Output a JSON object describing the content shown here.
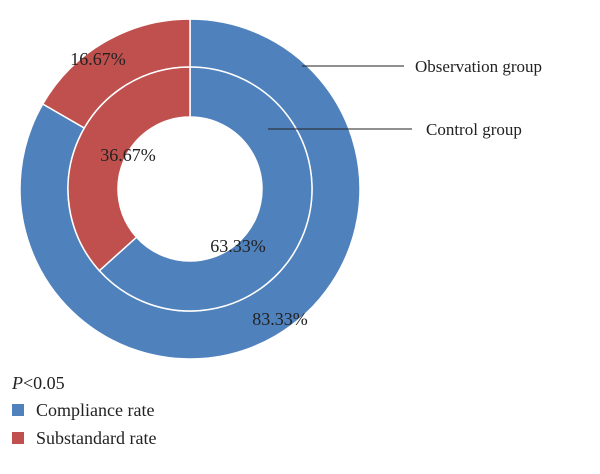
{
  "chart_data": {
    "type": "pie",
    "variant": "nested-donut",
    "colors": {
      "compliance": "#4f81bd",
      "substandard": "#c0504d"
    },
    "legend": [
      "Compliance rate",
      "Substandard rate"
    ],
    "rings": [
      {
        "name": "Observation group",
        "position": "outer",
        "slices": [
          {
            "label": "Compliance rate",
            "value": 83.33,
            "text": "83.33%"
          },
          {
            "label": "Substandard rate",
            "value": 16.67,
            "text": "16.67%"
          }
        ]
      },
      {
        "name": "Control group",
        "position": "inner",
        "slices": [
          {
            "label": "Compliance rate",
            "value": 63.33,
            "text": "63.33%"
          },
          {
            "label": "Substandard rate",
            "value": 36.67,
            "text": "36.67%"
          }
        ]
      }
    ],
    "annotation": "P<0.05",
    "legend_placement": "bottom-left"
  },
  "legend_items": [
    {
      "label": "Compliance rate"
    },
    {
      "label": "Substandard rate"
    }
  ],
  "note": {
    "p": "P",
    "rest": "<0.05"
  }
}
